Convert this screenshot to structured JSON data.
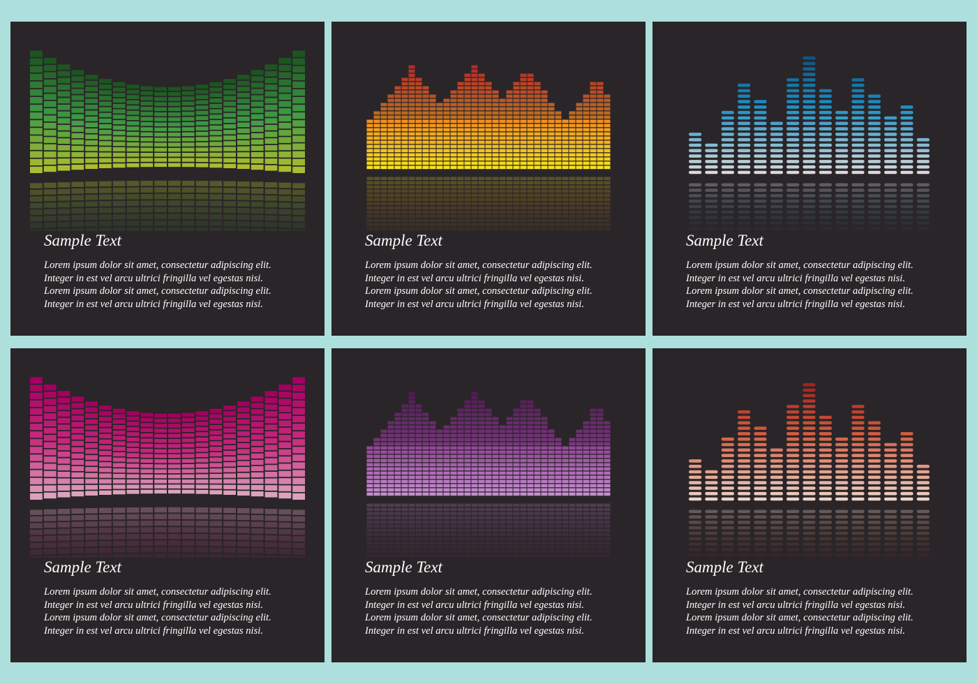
{
  "background_color": "#ade0dc",
  "card_background": "#2a2528",
  "cards": [
    {
      "style": "curved",
      "title": "Sample Text",
      "lines": [
        "Lorem ipsum dolor sit amet, consectetur adipiscing elit.",
        "Integer in est vel arcu ultrici fringilla vel egestas nisi.",
        "Lorem ipsum dolor sit amet, consectetur adipiscing elit.",
        "Integer in est vel arcu ultrici fringilla vel egestas nisi."
      ],
      "colors": {
        "top": "#1c5422",
        "mid": "#3f9a45",
        "bottom": "#a9bd2f"
      }
    },
    {
      "style": "flat",
      "title": "Sample Text",
      "lines": [
        "Lorem ipsum dolor sit amet, consectetur adipiscing elit.",
        "Integer in est vel arcu ultrici fringilla vel egestas nisi.",
        "Lorem ipsum dolor sit amet, consectetur adipiscing elit.",
        "Integer in est vel arcu ultrici fringilla vel egestas nisi."
      ],
      "colors": {
        "top": "#e4212a",
        "mid": "#f2821f",
        "bottom": "#f7e21c"
      }
    },
    {
      "style": "pills",
      "title": "Sample Text",
      "lines": [
        "Lorem ipsum dolor sit amet, consectetur adipiscing elit.",
        "Integer in est vel arcu ultrici fringilla vel egestas nisi.",
        "Lorem ipsum dolor sit amet, consectetur adipiscing elit.",
        "Integer in est vel arcu ultrici fringilla vel egestas nisi."
      ],
      "colors": {
        "top": "#0b3f68",
        "mid": "#1a8fc6",
        "bottom": "#d7d9dc"
      }
    },
    {
      "style": "curved",
      "title": "Sample Text",
      "lines": [
        "Lorem ipsum dolor sit amet, consectetur adipiscing elit.",
        "Integer in est vel arcu ultrici fringilla vel egestas nisi.",
        "Lorem ipsum dolor sit amet, consectetur adipiscing elit.",
        "Integer in est vel arcu ultrici fringilla vel egestas nisi."
      ],
      "colors": {
        "top": "#a3005f",
        "mid": "#c62a7e",
        "bottom": "#dba2bd"
      }
    },
    {
      "style": "flat",
      "title": "Sample Text",
      "lines": [
        "Lorem ipsum dolor sit amet, consectetur adipiscing elit.",
        "Integer in est vel arcu ultrici fringilla vel egestas nisi.",
        "Lorem ipsum dolor sit amet, consectetur adipiscing elit.",
        "Integer in est vel arcu ultrici fringilla vel egestas nisi."
      ],
      "colors": {
        "top": "#5b1260",
        "mid": "#8d3a93",
        "bottom": "#c58ed0"
      }
    },
    {
      "style": "pills",
      "title": "Sample Text",
      "lines": [
        "Lorem ipsum dolor sit amet, consectetur adipiscing elit.",
        "Integer in est vel arcu ultrici fringilla vel egestas nisi.",
        "Lorem ipsum dolor sit amet, consectetur adipiscing elit.",
        "Integer in est vel arcu ultrici fringilla vel egestas nisi."
      ],
      "colors": {
        "top": "#8e0f13",
        "mid": "#d35b3d",
        "bottom": "#ecd3c6"
      }
    }
  ]
}
